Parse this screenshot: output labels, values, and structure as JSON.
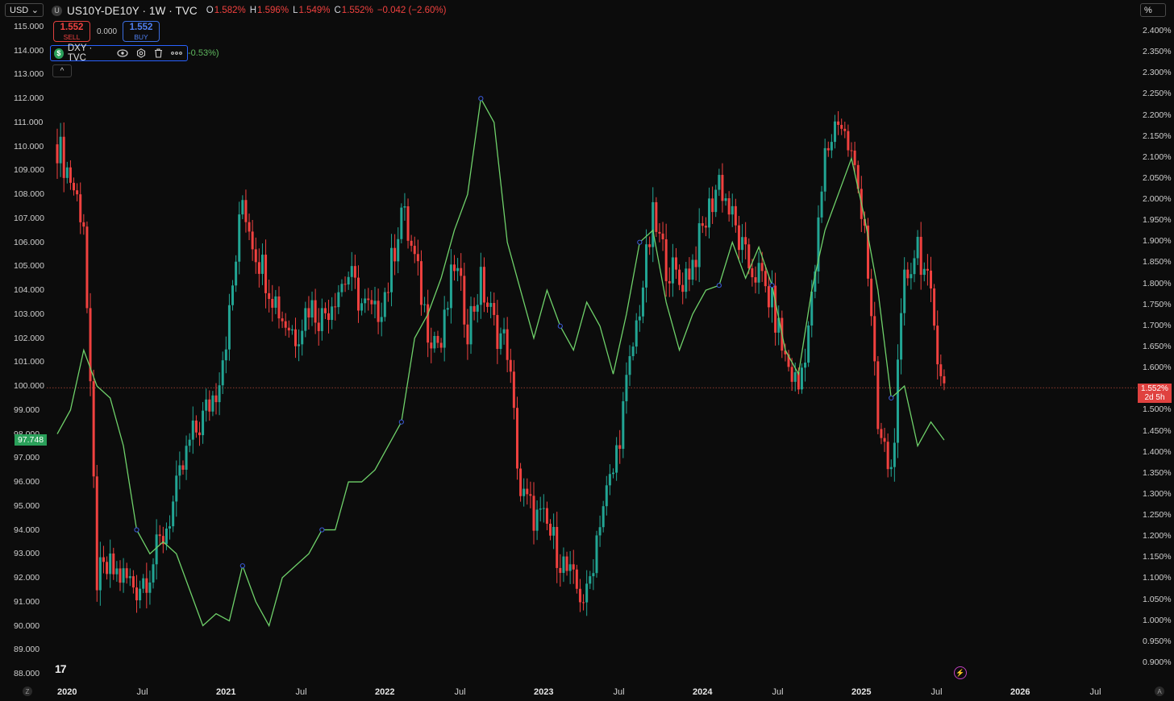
{
  "header": {
    "currency": "USD",
    "symbol": "US10Y-DE10Y · 1W · TVC",
    "o_label": "O",
    "o_value": "1.582%",
    "h_label": "H",
    "h_value": "1.596%",
    "l_label": "L",
    "l_value": "1.549%",
    "c_label": "C",
    "c_value": "1.552%",
    "change": "−0.042 (−2.60%)",
    "unit": "%"
  },
  "trade": {
    "sell_price": "1.552",
    "sell_label": "SELL",
    "spread": "0.000",
    "buy_price": "1.552",
    "buy_label": "BUY"
  },
  "overlay": {
    "name": "DXY · TVC",
    "change": "-0.53%)"
  },
  "tags": {
    "dxy_last": "97.748",
    "spread_last": "1.552%",
    "countdown": "2d 5h"
  },
  "colors": {
    "up": "#22a594",
    "down": "#f0413f",
    "dxy_line": "#6fd16a",
    "background": "#0c0c0c"
  },
  "chart_data": {
    "type": "candlestick",
    "x_ticks": [
      "2020",
      "Jul",
      "2021",
      "Jul",
      "2022",
      "Jul",
      "2023",
      "Jul",
      "2024",
      "Jul",
      "2025",
      "Jul",
      "2026",
      "Jul"
    ],
    "left_axis": {
      "ylim": [
        88,
        115
      ],
      "ticks": [
        "115.000",
        "114.000",
        "113.000",
        "112.000",
        "111.000",
        "110.000",
        "109.000",
        "108.000",
        "107.000",
        "106.000",
        "105.000",
        "104.000",
        "103.000",
        "102.000",
        "101.000",
        "100.000",
        "99.000",
        "98.000",
        "97.000",
        "96.000",
        "95.000",
        "94.000",
        "93.000",
        "92.000",
        "91.000",
        "90.000",
        "89.000",
        "88.000"
      ]
    },
    "right_axis": {
      "ylim": [
        0.9,
        2.4
      ],
      "ticks": [
        "2.400%",
        "2.350%",
        "2.300%",
        "2.250%",
        "2.200%",
        "2.150%",
        "2.100%",
        "2.050%",
        "2.000%",
        "1.950%",
        "1.900%",
        "1.850%",
        "1.800%",
        "1.750%",
        "1.700%",
        "1.650%",
        "1.600%",
        "1.550%",
        "1.500%",
        "1.450%",
        "1.400%",
        "1.350%",
        "1.300%",
        "1.250%",
        "1.200%",
        "1.150%",
        "1.100%",
        "1.050%",
        "1.000%",
        "0.950%",
        "0.900%"
      ]
    },
    "series": [
      {
        "name": "US10Y-DE10Y",
        "axis": "right",
        "style": "candles",
        "points": [
          [
            "2020-01",
            2.13
          ],
          [
            "2020-02",
            2.05
          ],
          [
            "2020-03",
            1.95
          ],
          [
            "2020-04",
            1.1
          ],
          [
            "2020-05",
            1.12
          ],
          [
            "2020-06",
            1.1
          ],
          [
            "2020-07",
            1.08
          ],
          [
            "2020-08",
            1.12
          ],
          [
            "2020-09",
            1.2
          ],
          [
            "2020-10",
            1.3
          ],
          [
            "2020-11",
            1.42
          ],
          [
            "2020-12",
            1.48
          ],
          [
            "2021-01",
            1.55
          ],
          [
            "2021-02",
            1.72
          ],
          [
            "2021-03",
            2.0
          ],
          [
            "2021-04",
            1.88
          ],
          [
            "2021-05",
            1.8
          ],
          [
            "2021-06",
            1.72
          ],
          [
            "2021-07",
            1.68
          ],
          [
            "2021-08",
            1.75
          ],
          [
            "2021-09",
            1.72
          ],
          [
            "2021-10",
            1.78
          ],
          [
            "2021-11",
            1.82
          ],
          [
            "2021-12",
            1.75
          ],
          [
            "2022-01",
            1.72
          ],
          [
            "2022-02",
            1.8
          ],
          [
            "2022-03",
            1.98
          ],
          [
            "2022-04",
            1.85
          ],
          [
            "2022-05",
            1.7
          ],
          [
            "2022-06",
            1.65
          ],
          [
            "2022-07",
            1.85
          ],
          [
            "2022-08",
            1.7
          ],
          [
            "2022-09",
            1.8
          ],
          [
            "2022-10",
            1.7
          ],
          [
            "2022-11",
            1.65
          ],
          [
            "2022-12",
            1.3
          ],
          [
            "2023-01",
            1.25
          ],
          [
            "2023-02",
            1.22
          ],
          [
            "2023-03",
            1.15
          ],
          [
            "2023-04",
            1.08
          ],
          [
            "2023-05",
            1.05
          ],
          [
            "2023-06",
            1.25
          ],
          [
            "2023-07",
            1.35
          ],
          [
            "2023-08",
            1.55
          ],
          [
            "2023-09",
            1.75
          ],
          [
            "2023-10",
            1.95
          ],
          [
            "2023-11",
            1.85
          ],
          [
            "2023-12",
            1.8
          ],
          [
            "2024-01",
            1.85
          ],
          [
            "2024-02",
            1.95
          ],
          [
            "2024-03",
            2.05
          ],
          [
            "2024-04",
            1.95
          ],
          [
            "2024-05",
            1.85
          ],
          [
            "2024-06",
            1.82
          ],
          [
            "2024-07",
            1.75
          ],
          [
            "2024-08",
            1.62
          ],
          [
            "2024-09",
            1.55
          ],
          [
            "2024-10",
            1.75
          ],
          [
            "2024-11",
            2.1
          ],
          [
            "2024-12",
            2.2
          ],
          [
            "2025-01",
            2.1
          ],
          [
            "2025-02",
            1.95
          ],
          [
            "2025-03",
            1.45
          ],
          [
            "2025-04",
            1.35
          ],
          [
            "2025-05",
            1.8
          ],
          [
            "2025-06",
            1.9
          ],
          [
            "2025-07",
            1.75
          ],
          [
            "2025-08",
            1.552
          ]
        ]
      },
      {
        "name": "DXY",
        "axis": "left",
        "style": "line",
        "points": [
          [
            "2020-01",
            98.0
          ],
          [
            "2020-02",
            99.0
          ],
          [
            "2020-03",
            101.5
          ],
          [
            "2020-04",
            100.0
          ],
          [
            "2020-05",
            99.5
          ],
          [
            "2020-06",
            97.5
          ],
          [
            "2020-07",
            94.0
          ],
          [
            "2020-08",
            93.0
          ],
          [
            "2020-09",
            93.5
          ],
          [
            "2020-10",
            93.0
          ],
          [
            "2020-11",
            91.5
          ],
          [
            "2020-12",
            90.0
          ],
          [
            "2021-01",
            90.5
          ],
          [
            "2021-02",
            90.2
          ],
          [
            "2021-03",
            92.5
          ],
          [
            "2021-04",
            91.0
          ],
          [
            "2021-05",
            90.0
          ],
          [
            "2021-06",
            92.0
          ],
          [
            "2021-07",
            92.5
          ],
          [
            "2021-08",
            93.0
          ],
          [
            "2021-09",
            94.0
          ],
          [
            "2021-10",
            94.0
          ],
          [
            "2021-11",
            96.0
          ],
          [
            "2021-12",
            96.0
          ],
          [
            "2022-01",
            96.5
          ],
          [
            "2022-02",
            97.5
          ],
          [
            "2022-03",
            98.5
          ],
          [
            "2022-04",
            102.0
          ],
          [
            "2022-05",
            103.0
          ],
          [
            "2022-06",
            104.5
          ],
          [
            "2022-07",
            106.5
          ],
          [
            "2022-08",
            108.0
          ],
          [
            "2022-09",
            112.0
          ],
          [
            "2022-10",
            111.0
          ],
          [
            "2022-11",
            106.0
          ],
          [
            "2022-12",
            104.0
          ],
          [
            "2023-01",
            102.0
          ],
          [
            "2023-02",
            104.0
          ],
          [
            "2023-03",
            102.5
          ],
          [
            "2023-04",
            101.5
          ],
          [
            "2023-05",
            103.5
          ],
          [
            "2023-06",
            102.5
          ],
          [
            "2023-07",
            100.5
          ],
          [
            "2023-08",
            103.0
          ],
          [
            "2023-09",
            106.0
          ],
          [
            "2023-10",
            106.5
          ],
          [
            "2023-11",
            103.5
          ],
          [
            "2023-12",
            101.5
          ],
          [
            "2024-01",
            103.0
          ],
          [
            "2024-02",
            104.0
          ],
          [
            "2024-03",
            104.2
          ],
          [
            "2024-04",
            106.0
          ],
          [
            "2024-05",
            104.5
          ],
          [
            "2024-06",
            105.8
          ],
          [
            "2024-07",
            104.2
          ],
          [
            "2024-08",
            101.5
          ],
          [
            "2024-09",
            100.5
          ],
          [
            "2024-10",
            104.0
          ],
          [
            "2024-11",
            106.5
          ],
          [
            "2024-12",
            108.0
          ],
          [
            "2025-01",
            109.5
          ],
          [
            "2025-02",
            107.0
          ],
          [
            "2025-03",
            104.0
          ],
          [
            "2025-04",
            99.5
          ],
          [
            "2025-05",
            100.0
          ],
          [
            "2025-06",
            97.5
          ],
          [
            "2025-07",
            98.5
          ],
          [
            "2025-08",
            97.748
          ]
        ]
      }
    ],
    "reference_line": {
      "axis": "right",
      "value": 1.552
    },
    "grid": false
  }
}
